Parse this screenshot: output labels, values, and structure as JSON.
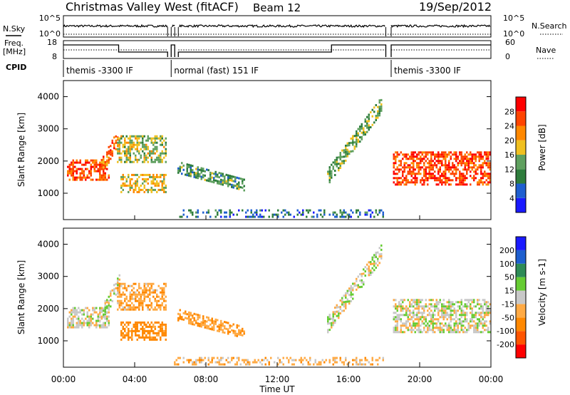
{
  "header": {
    "station": "Christmas Valley West (fitACF)",
    "beam": "Beam 12",
    "date": "19/Sep/2012"
  },
  "params": {
    "nsky_label": "N.Sky",
    "nsky_ticks": [
      "10^5",
      "10^0"
    ],
    "nsearch_label": "N.Search",
    "nsearch_ticks": [
      "10^5",
      "10^0"
    ],
    "freq_label_1": "Freq.",
    "freq_label_2": "[MHz]",
    "freq_ticks": [
      "18",
      "8"
    ],
    "nave_label": "Nave",
    "nave_ticks": [
      "60",
      "0"
    ],
    "cpid_label": "CPID"
  },
  "cpid_segments": [
    {
      "label": "themis -3300 IF",
      "start_h": 0,
      "end_h": 5.85
    },
    {
      "label": "normal (fast) 151 IF",
      "start_h": 6.05,
      "end_h": 18.1
    },
    {
      "label": "themis -3300 IF",
      "start_h": 18.4,
      "end_h": 24
    }
  ],
  "time_axis": {
    "label": "Time UT",
    "ticks": [
      "00:00",
      "04:00",
      "08:00",
      "12:00",
      "16:00",
      "20:00",
      "00:00"
    ]
  },
  "colors": {
    "power": [
      "#1a1aff",
      "#1f5fd0",
      "#2e7d3c",
      "#5fa05f",
      "#f0c020",
      "#ff8800",
      "#ff4400",
      "#ff0000"
    ],
    "velocity": [
      "#ff0000",
      "#ff5500",
      "#ff8800",
      "#ffaa44",
      "#c8c8c8",
      "#66cc33",
      "#2e8b57",
      "#1e5fcf",
      "#1a1aff"
    ]
  },
  "chart_data": [
    {
      "type": "heatmap",
      "panel": "power",
      "xlabel": "",
      "ylabel": "Slant Range [km]",
      "xlim_hours": [
        0,
        24
      ],
      "ylim_km": [
        180,
        4500
      ],
      "yticks": [
        "1000",
        "2000",
        "3000",
        "4000"
      ],
      "colorbar": {
        "label": "Power [dB]",
        "ticks": [
          "4",
          "8",
          "12",
          "16",
          "20",
          "24",
          "28"
        ],
        "range": [
          0,
          32
        ]
      },
      "features": [
        {
          "desc": "F-region echoes near 1700 km",
          "start_h": 0.2,
          "end_h": 2.6,
          "range_km": [
            1450,
            2050
          ],
          "level_db": 26
        },
        {
          "desc": "rising band",
          "start_h": 2.0,
          "end_h": 3.2,
          "range_km": [
            1700,
            2900
          ],
          "level_db": 24
        },
        {
          "desc": "band 2000-2800 km",
          "start_h": 3.0,
          "end_h": 5.8,
          "range_km": [
            2000,
            2800
          ],
          "level_db": 16
        },
        {
          "desc": "band near 1300 km",
          "start_h": 3.2,
          "end_h": 5.8,
          "range_km": [
            1050,
            1600
          ],
          "level_db": 18
        },
        {
          "desc": "descending band",
          "start_h": 6.4,
          "end_h": 10.2,
          "range_km": [
            1200,
            2000
          ],
          "level_db": 12
        },
        {
          "desc": "near-range ground/E echoes",
          "start_h": 6.2,
          "end_h": 18.0,
          "range_km": [
            250,
            500
          ],
          "level_db": 8
        },
        {
          "desc": "afternoon rising band",
          "start_h": 14.8,
          "end_h": 17.9,
          "range_km": [
            1500,
            3800
          ],
          "level_db": 14
        },
        {
          "desc": "evening echoes",
          "start_h": 18.5,
          "end_h": 24.0,
          "range_km": [
            1300,
            2300
          ],
          "level_db": 26
        }
      ]
    },
    {
      "type": "heatmap",
      "panel": "velocity",
      "xlabel": "Time UT",
      "ylabel": "Slant Range [km]",
      "xlim_hours": [
        0,
        24
      ],
      "ylim_km": [
        180,
        4500
      ],
      "yticks": [
        "1000",
        "2000",
        "3000",
        "4000"
      ],
      "colorbar": {
        "label": "Velocity [m s-1]",
        "ticks": [
          "-200",
          "-100",
          "-50",
          "-15",
          "15",
          "50",
          "100",
          "200"
        ],
        "range": [
          -250,
          250
        ]
      },
      "features": [
        {
          "desc": "ground scatter near 1700 km",
          "start_h": 0.2,
          "end_h": 2.6,
          "range_km": [
            1450,
            2050
          ],
          "velocity": 0
        },
        {
          "desc": "rising band",
          "start_h": 2.0,
          "end_h": 3.2,
          "range_km": [
            1700,
            2900
          ],
          "velocity": 0
        },
        {
          "desc": "band 2000-2800 km",
          "start_h": 3.0,
          "end_h": 5.8,
          "range_km": [
            2000,
            2800
          ],
          "velocity": -40
        },
        {
          "desc": "band near 1300 km",
          "start_h": 3.2,
          "end_h": 5.8,
          "range_km": [
            1050,
            1600
          ],
          "velocity": -70
        },
        {
          "desc": "descending band",
          "start_h": 6.4,
          "end_h": 10.2,
          "range_km": [
            1200,
            2000
          ],
          "velocity": -45
        },
        {
          "desc": "near-range echoes",
          "start_h": 6.2,
          "end_h": 18.0,
          "range_km": [
            250,
            500
          ],
          "velocity": -30
        },
        {
          "desc": "afternoon rising band",
          "start_h": 14.8,
          "end_h": 17.9,
          "range_km": [
            1500,
            3800
          ],
          "velocity": 0
        },
        {
          "desc": "evening ground scatter",
          "start_h": 18.5,
          "end_h": 24.0,
          "range_km": [
            1300,
            2300
          ],
          "velocity": 0
        }
      ]
    }
  ]
}
